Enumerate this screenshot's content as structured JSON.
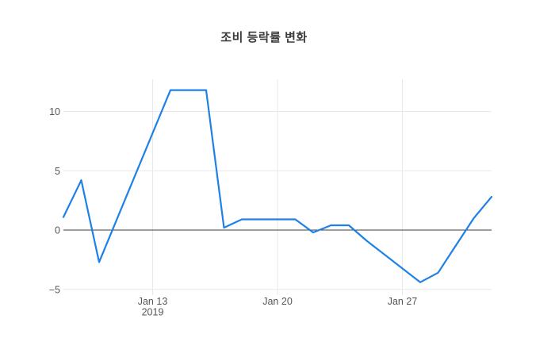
{
  "figure": {
    "title": "조비 등락률 변화"
  },
  "colors": {
    "line": "#1f80e5",
    "grid": "#e8e8e8",
    "zero_line": "#3c3c3c",
    "tick_text": "#555555",
    "title_text": "#3b3b3b",
    "background": "#ffffff"
  },
  "chart_data": {
    "type": "line",
    "title": "조비 등락률 변화",
    "xlabel": "",
    "ylabel": "",
    "x_type": "date",
    "x_range": [
      "2019-01-08",
      "2019-02-01"
    ],
    "ylim": [
      -5.2,
      12.7
    ],
    "grid": true,
    "zero_line": true,
    "legend": "none",
    "y_axis": {
      "ticks": [
        {
          "label": "10",
          "value": 10
        },
        {
          "label": "5",
          "value": 5
        },
        {
          "label": "0",
          "value": 0
        },
        {
          "label": "−5",
          "value": -5
        }
      ]
    },
    "x_axis": {
      "ticks": [
        {
          "label": "Jan 13",
          "sublabel": "2019",
          "day": 5
        },
        {
          "label": "Jan 20",
          "sublabel": "",
          "day": 12
        },
        {
          "label": "Jan 27",
          "sublabel": "",
          "day": 19
        }
      ]
    },
    "series": [
      {
        "name": "등락률",
        "color": "#1f80e5",
        "points": [
          {
            "date": "2019-01-08",
            "day": 0,
            "value": 1.1
          },
          {
            "date": "2019-01-09",
            "day": 1,
            "value": 4.2
          },
          {
            "date": "2019-01-10",
            "day": 2,
            "value": -2.7
          },
          {
            "date": "2019-01-14",
            "day": 6,
            "value": 11.8
          },
          {
            "date": "2019-01-15",
            "day": 7,
            "value": 11.8
          },
          {
            "date": "2019-01-16",
            "day": 8,
            "value": 11.8
          },
          {
            "date": "2019-01-17",
            "day": 9,
            "value": 0.2
          },
          {
            "date": "2019-01-18",
            "day": 10,
            "value": 0.9
          },
          {
            "date": "2019-01-21",
            "day": 13,
            "value": 0.9
          },
          {
            "date": "2019-01-22",
            "day": 14,
            "value": -0.2
          },
          {
            "date": "2019-01-23",
            "day": 15,
            "value": 0.4
          },
          {
            "date": "2019-01-24",
            "day": 16,
            "value": 0.4
          },
          {
            "date": "2019-01-25",
            "day": 17,
            "value": -0.9
          },
          {
            "date": "2019-01-28",
            "day": 20,
            "value": -4.4
          },
          {
            "date": "2019-01-29",
            "day": 21,
            "value": -3.6
          },
          {
            "date": "2019-01-30",
            "day": 22,
            "value": -1.3
          },
          {
            "date": "2019-01-31",
            "day": 23,
            "value": 1.0
          },
          {
            "date": "2019-02-01",
            "day": 24,
            "value": 2.8
          }
        ]
      }
    ]
  }
}
